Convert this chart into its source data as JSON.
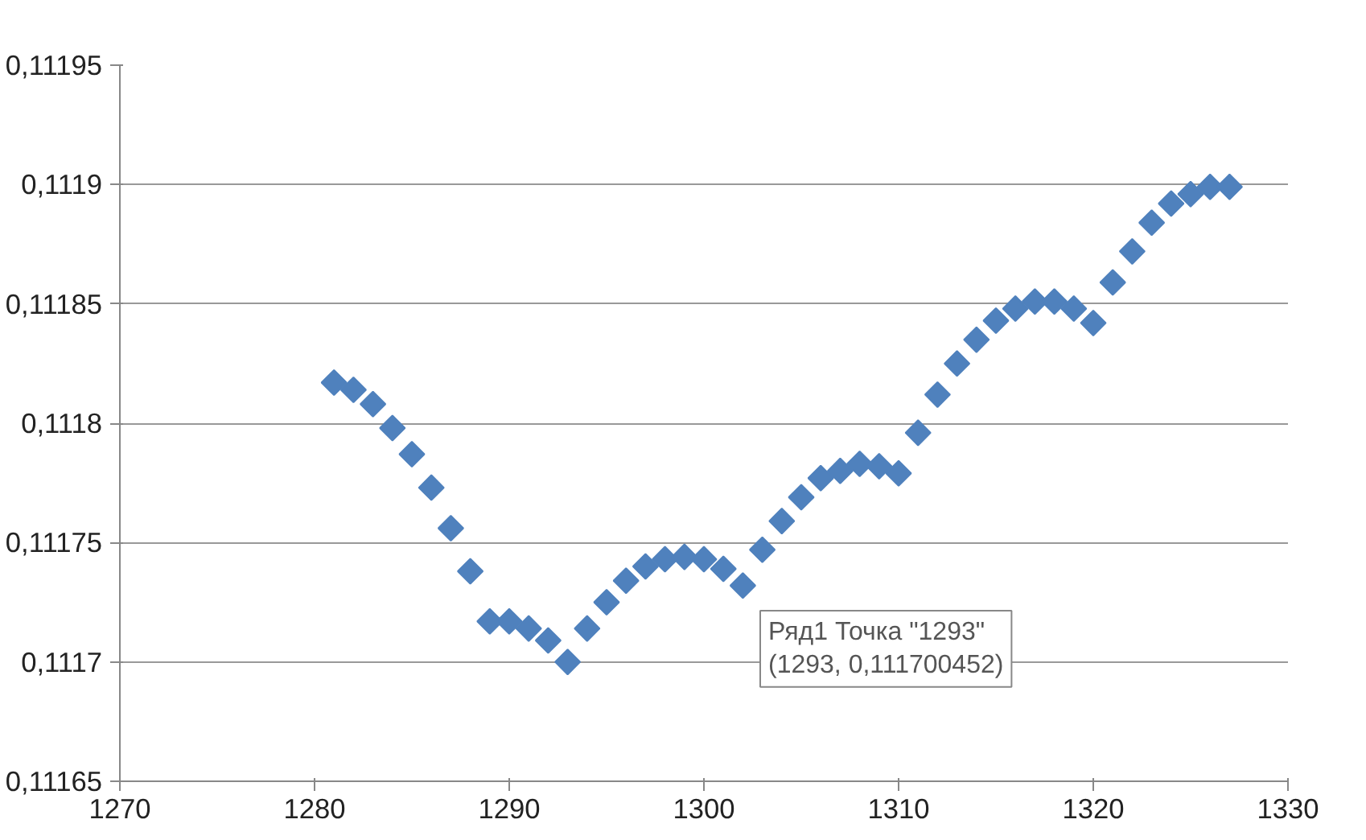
{
  "chart_data": {
    "type": "scatter",
    "marker": "diamond",
    "grid": "y",
    "x": [
      1281,
      1282,
      1283,
      1284,
      1285,
      1286,
      1287,
      1288,
      1289,
      1290,
      1291,
      1292,
      1293,
      1294,
      1295,
      1296,
      1297,
      1298,
      1299,
      1300,
      1301,
      1302,
      1303,
      1304,
      1305,
      1306,
      1307,
      1308,
      1309,
      1310,
      1311,
      1312,
      1313,
      1314,
      1315,
      1316,
      1317,
      1318,
      1319,
      1320,
      1321,
      1322,
      1323,
      1324,
      1325,
      1326,
      1327
    ],
    "series": [
      {
        "color": "#4f81bd",
        "values": [
          0.111817,
          0.111814,
          0.111808,
          0.111798,
          0.111787,
          0.111773,
          0.111756,
          0.111738,
          0.111717,
          0.111717,
          0.111714,
          0.111709,
          0.1117,
          0.111714,
          0.111725,
          0.111734,
          0.11174,
          0.111743,
          0.111744,
          0.111743,
          0.111739,
          0.111732,
          0.111747,
          0.111759,
          0.111769,
          0.111777,
          0.11178,
          0.111783,
          0.111782,
          0.111779,
          0.111796,
          0.111812,
          0.111825,
          0.111835,
          0.111843,
          0.111848,
          0.111851,
          0.111851,
          0.111848,
          0.111842,
          0.111859,
          0.111872,
          0.111884,
          0.111892,
          0.111896,
          0.111899,
          0.111899
        ]
      }
    ],
    "xlim": [
      1270,
      1330
    ],
    "xticks": [
      1270,
      1280,
      1290,
      1300,
      1310,
      1320,
      1330
    ],
    "ylim": [
      0.11165,
      0.11195
    ],
    "yticks": [
      {
        "value": 0.11165,
        "label": "0,11165"
      },
      {
        "value": 0.1117,
        "label": "0,1117"
      },
      {
        "value": 0.11175,
        "label": "0,11175"
      },
      {
        "value": 0.1118,
        "label": "0,1118"
      },
      {
        "value": 0.11185,
        "label": "0,11185"
      },
      {
        "value": 0.1119,
        "label": "0,1119"
      },
      {
        "value": 0.11195,
        "label": "0,11195"
      }
    ],
    "annotations": [
      "Ряд1 Точка \"1293\"\n(1293, 0,111700452)"
    ]
  }
}
